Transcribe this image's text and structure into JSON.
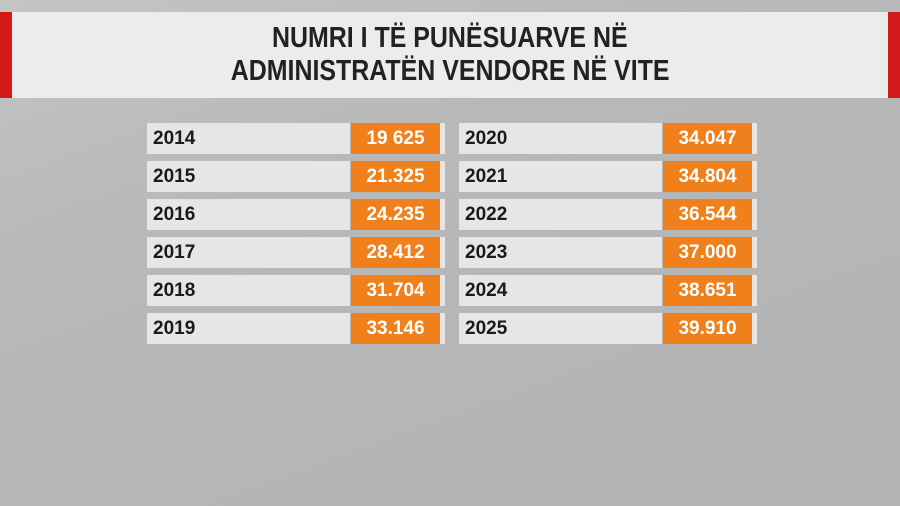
{
  "title": {
    "lines": [
      "NUMRI I TË PUNËSUARVE NË",
      "ADMINISTRATËN VENDORE NË VITE"
    ]
  },
  "tables": [
    {
      "rows": [
        [
          "2014",
          "19 625"
        ],
        [
          "2015",
          "21.325"
        ],
        [
          "2016",
          "24.235"
        ],
        [
          "2017",
          "28.412"
        ],
        [
          "2018",
          "31.704"
        ],
        [
          "2019",
          "33.146"
        ]
      ]
    },
    {
      "rows": [
        [
          "2020",
          "34.047"
        ],
        [
          "2021",
          "34.804"
        ],
        [
          "2022",
          "36.544"
        ],
        [
          "2023",
          "37.000"
        ],
        [
          "2024",
          "38.651"
        ],
        [
          "2025",
          "39.910"
        ]
      ]
    }
  ]
}
